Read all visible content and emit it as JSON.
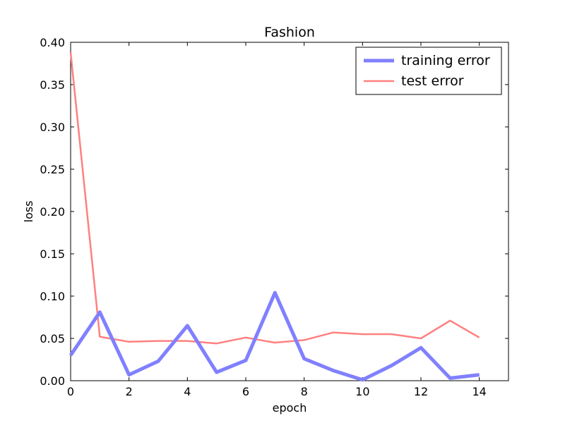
{
  "chart_data": {
    "type": "line",
    "title": "Fashion",
    "xlabel": "epoch",
    "ylabel": "loss",
    "xlim": [
      0,
      15
    ],
    "ylim": [
      0,
      0.4
    ],
    "x_ticks": [
      0,
      2,
      4,
      6,
      8,
      10,
      12,
      14
    ],
    "x_tick_labels": [
      "0",
      "2",
      "4",
      "6",
      "8",
      "10",
      "12",
      "14"
    ],
    "y_ticks": [
      0,
      0.05,
      0.1,
      0.15,
      0.2,
      0.25,
      0.3,
      0.35,
      0.4
    ],
    "y_tick_labels": [
      "0.00",
      "0.05",
      "0.10",
      "0.15",
      "0.20",
      "0.25",
      "0.30",
      "0.35",
      "0.40"
    ],
    "grid": false,
    "legend_position": "top-right",
    "x": [
      0,
      1,
      2,
      3,
      4,
      5,
      6,
      7,
      8,
      9,
      10,
      11,
      12,
      13,
      14
    ],
    "series": [
      {
        "name": "training error",
        "color": "#8080ff",
        "style": "thick",
        "values": [
          0.03,
          0.081,
          0.007,
          0.023,
          0.065,
          0.01,
          0.024,
          0.104,
          0.026,
          0.012,
          0.001,
          0.018,
          0.039,
          0.003,
          0.007
        ]
      },
      {
        "name": "test error",
        "color": "#ff8080",
        "style": "thin",
        "values": [
          0.388,
          0.052,
          0.046,
          0.047,
          0.047,
          0.044,
          0.051,
          0.045,
          0.048,
          0.057,
          0.055,
          0.055,
          0.05,
          0.071,
          0.051
        ]
      }
    ]
  }
}
